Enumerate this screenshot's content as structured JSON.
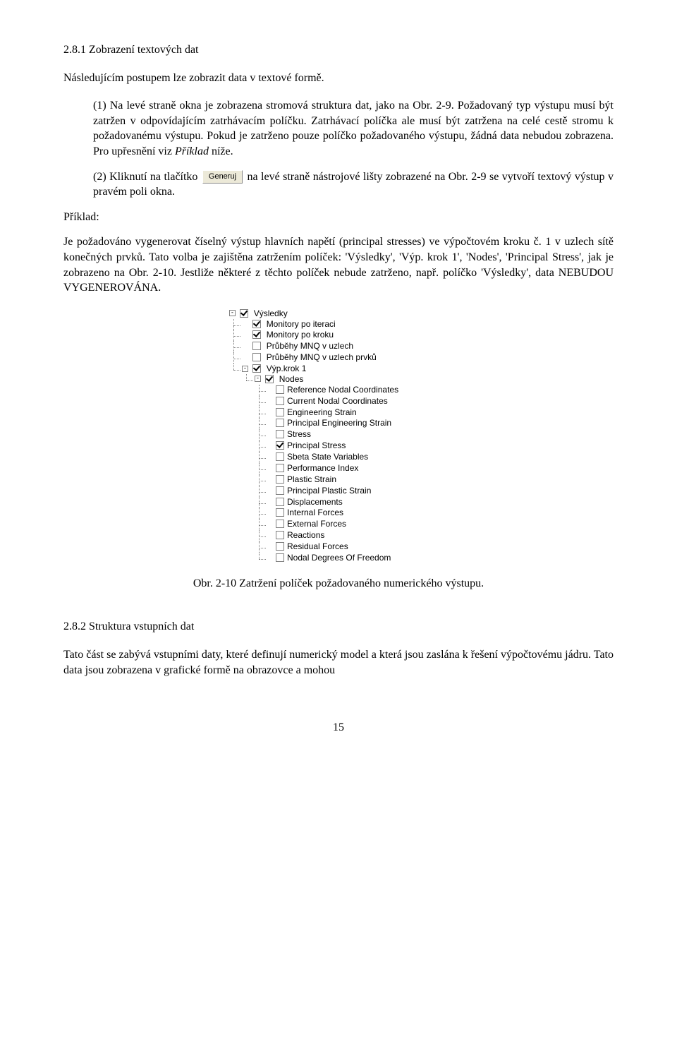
{
  "heading1": "2.8.1 Zobrazení textových dat",
  "intro": "Následujícím postupem lze zobrazit data v textové formě.",
  "step1_a": "(1) Na levé straně okna je zobrazena stromová struktura dat, jako na Obr. 2-9. Požadovaný typ výstupu musí být zatržen v odpovídajícím zatrhávacím políčku. Zatrhávací políčka ale musí být zatržena na celé cestě stromu k požadovanému výstupu. Pokud je zatrženo pouze políčko požadovaného výstupu, žádná data nebudou zobrazena. Pro upřesnění viz ",
  "step1_b": "Příklad",
  "step1_c": " níže.",
  "step2_a": "(2) Kliknutí na tlačítko ",
  "step2_btn": "Generuj",
  "step2_b": " na levé straně nástrojové lišty zobrazené na Obr. 2-9 se vytvoří textový výstup v pravém poli okna.",
  "example_label": "Příklad:",
  "example_body": "Je požadováno vygenerovat číselný výstup hlavních napětí (principal stresses) ve výpočtovém kroku č. 1 v uzlech sítě konečných prvků. Tato volba je zajištěna zatržením políček: 'Výsledky', 'Výp. krok 1', 'Nodes', 'Principal Stress', jak je zobrazeno na Obr. 2-10. Jestliže některé z těchto políček nebude zatrženo, např. políčko 'Výsledky', data NEBUDOU VYGENEROVÁNA.",
  "tree": {
    "root": {
      "label": "Výsledky",
      "checked": true
    },
    "lvl1": [
      {
        "label": "Monitory po iteraci",
        "checked": true,
        "toggle": false
      },
      {
        "label": "Monitory po kroku",
        "checked": true,
        "toggle": false
      },
      {
        "label": "Průběhy MNQ v uzlech",
        "checked": false,
        "toggle": false
      },
      {
        "label": "Průběhy MNQ v uzlech prvků",
        "checked": false,
        "toggle": false
      }
    ],
    "krok": {
      "label": "Výp.krok 1",
      "checked": true
    },
    "nodes": {
      "label": "Nodes",
      "checked": true
    },
    "leaf": [
      {
        "label": "Reference Nodal Coordinates",
        "checked": false
      },
      {
        "label": "Current Nodal Coordinates",
        "checked": false
      },
      {
        "label": "Engineering Strain",
        "checked": false
      },
      {
        "label": "Principal Engineering Strain",
        "checked": false
      },
      {
        "label": "Stress",
        "checked": false
      },
      {
        "label": "Principal Stress",
        "checked": true
      },
      {
        "label": "Sbeta State Variables",
        "checked": false
      },
      {
        "label": "Performance Index",
        "checked": false
      },
      {
        "label": "Plastic Strain",
        "checked": false
      },
      {
        "label": "Principal Plastic Strain",
        "checked": false
      },
      {
        "label": "Displacements",
        "checked": false
      },
      {
        "label": "Internal Forces",
        "checked": false
      },
      {
        "label": "External Forces",
        "checked": false
      },
      {
        "label": "Reactions",
        "checked": false
      },
      {
        "label": "Residual Forces",
        "checked": false
      },
      {
        "label": "Nodal Degrees Of Freedom",
        "checked": false
      }
    ]
  },
  "caption": "Obr. 2-10  Zatržení políček požadovaného numerického výstupu.",
  "heading2": "2.8.2  Struktura vstupních dat",
  "para2": "Tato část se zabývá vstupními daty, které definují numerický model a která jsou zaslána k řešení výpočtovému jádru. Tato data jsou zobrazena v grafické formě na obrazovce a mohou",
  "pagenum": "15"
}
